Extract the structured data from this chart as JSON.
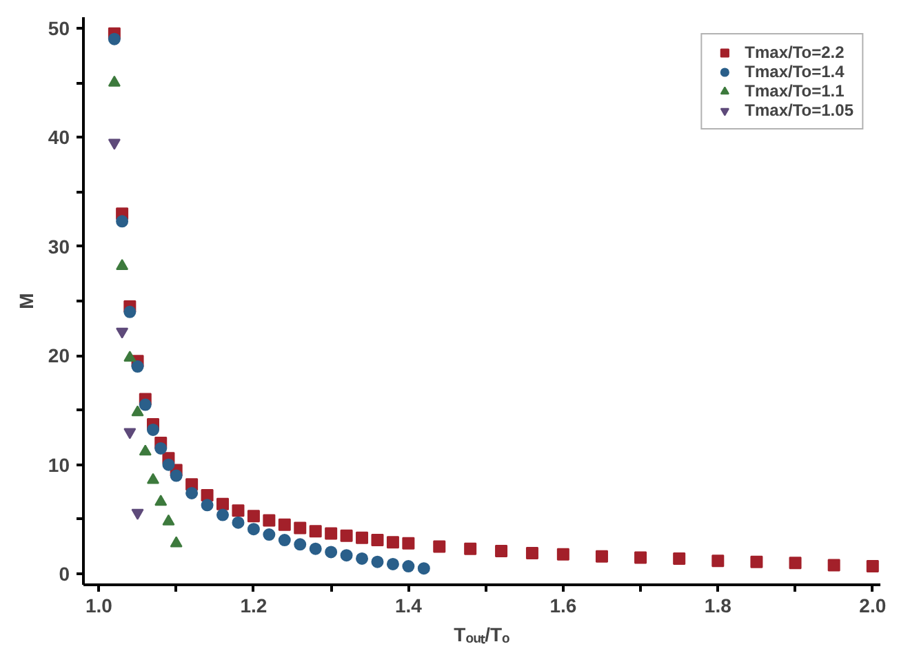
{
  "chart_data": {
    "type": "scatter",
    "xlabel": "Tₒᵤₜ/Tₒ",
    "ylabel": "M",
    "xlim": [
      0.98,
      2.01
    ],
    "ylim": [
      -1,
      51
    ],
    "xticks": [
      {
        "value": 1.0,
        "label": "1.0"
      },
      {
        "value": 1.1,
        "label": null
      },
      1.2,
      {
        "value": 1.3,
        "label": null
      },
      1.4,
      {
        "value": 1.5,
        "label": null
      },
      1.6,
      {
        "value": 1.7,
        "label": null
      },
      1.8,
      {
        "value": 1.9,
        "label": null
      },
      {
        "value": 2.0,
        "label": "2.0"
      }
    ],
    "yticks": [
      0,
      {
        "value": 5,
        "label": null
      },
      10,
      {
        "value": 15,
        "label": null
      },
      20,
      {
        "value": 25,
        "label": null
      },
      30,
      {
        "value": 35,
        "label": null
      },
      40,
      {
        "value": 45,
        "label": null
      },
      50
    ],
    "grid": false,
    "legend": "top right",
    "series": [
      {
        "name": "Tmax/To=2.2",
        "color": "#a3202a",
        "marker": "square",
        "x": [
          1.02,
          1.03,
          1.04,
          1.05,
          1.06,
          1.07,
          1.08,
          1.09,
          1.1,
          1.12,
          1.14,
          1.16,
          1.18,
          1.2,
          1.22,
          1.24,
          1.26,
          1.28,
          1.3,
          1.32,
          1.34,
          1.36,
          1.38,
          1.4,
          1.44,
          1.48,
          1.52,
          1.56,
          1.6,
          1.65,
          1.7,
          1.75,
          1.8,
          1.85,
          1.9,
          1.95,
          2.0
        ],
        "values": [
          49.5,
          33,
          24.5,
          19.5,
          16,
          13.7,
          12,
          10.6,
          9.5,
          8.2,
          7.2,
          6.4,
          5.8,
          5.3,
          4.9,
          4.5,
          4.2,
          3.9,
          3.7,
          3.5,
          3.3,
          3.1,
          2.9,
          2.8,
          2.5,
          2.3,
          2.1,
          1.9,
          1.8,
          1.6,
          1.5,
          1.4,
          1.2,
          1.1,
          1.0,
          0.8,
          0.7
        ]
      },
      {
        "name": "Tmax/To=1.4",
        "color": "#2a5f8a",
        "marker": "circle",
        "x": [
          1.02,
          1.03,
          1.04,
          1.05,
          1.06,
          1.07,
          1.08,
          1.09,
          1.1,
          1.12,
          1.14,
          1.16,
          1.18,
          1.2,
          1.22,
          1.24,
          1.26,
          1.28,
          1.3,
          1.32,
          1.34,
          1.36,
          1.38,
          1.4,
          1.42
        ],
        "values": [
          49,
          32.3,
          24,
          19,
          15.5,
          13.2,
          11.5,
          10,
          9,
          7.4,
          6.3,
          5.4,
          4.7,
          4.1,
          3.6,
          3.1,
          2.7,
          2.3,
          2.0,
          1.7,
          1.4,
          1.1,
          0.9,
          0.7,
          0.5
        ]
      },
      {
        "name": "Tmax/To=1.1",
        "color": "#3d7a3d",
        "marker": "triangle",
        "x": [
          1.02,
          1.03,
          1.04,
          1.05,
          1.06,
          1.07,
          1.08,
          1.09,
          1.1
        ],
        "values": [
          45,
          28.2,
          19.8,
          14.8,
          11.2,
          8.6,
          6.6,
          4.8,
          2.8
        ]
      },
      {
        "name": "Tmax/To=1.05",
        "color": "#5e4a7a",
        "x": [
          1.02,
          1.03,
          1.04,
          1.05
        ],
        "values": [
          39.5,
          22.2,
          13,
          5.6
        ]
      }
    ]
  }
}
